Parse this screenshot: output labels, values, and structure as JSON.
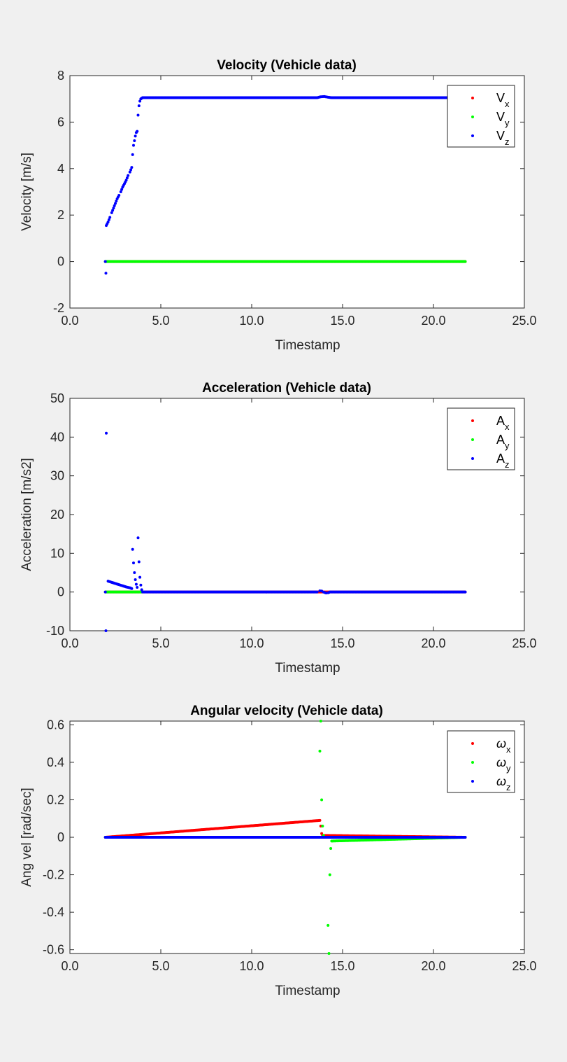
{
  "figure": {
    "background": "#f0f0f0",
    "axes_background": "#ffffff",
    "axis_color": "#262626",
    "legend_border": "#262626"
  },
  "chart_data": [
    {
      "type": "scatter",
      "title": "Velocity (Vehicle data)",
      "xlabel": "Timestamp",
      "ylabel": "Velocity [m/s]",
      "xlim": [
        0,
        25
      ],
      "ylim": [
        -2,
        8
      ],
      "xticks": [
        0,
        5,
        10,
        15,
        20,
        25
      ],
      "xtick_labels": [
        "0.0",
        "5.0",
        "10.0",
        "15.0",
        "20.0",
        "25.0"
      ],
      "yticks": [
        -2,
        0,
        2,
        4,
        6,
        8
      ],
      "ytick_labels": [
        "-2",
        "0",
        "2",
        "4",
        "6",
        "8"
      ],
      "grid": false,
      "legend_position": "top-right",
      "series": [
        {
          "name": "V",
          "sub": "x",
          "color": "#ff0000",
          "points": [
            [
              1.95,
              0
            ],
            [
              21.75,
              0
            ]
          ]
        },
        {
          "name": "V",
          "sub": "y",
          "color": "#00ff00",
          "points": [
            [
              1.95,
              0
            ],
            [
              21.75,
              0
            ]
          ]
        },
        {
          "name": "V",
          "sub": "z",
          "color": "#0000ff",
          "points": [
            [
              1.95,
              0
            ],
            [
              1.98,
              -0.5
            ],
            [
              2.0,
              1.55
            ],
            [
              2.1,
              1.7
            ],
            [
              2.2,
              1.9
            ],
            [
              2.3,
              2.1
            ],
            [
              2.4,
              2.3
            ],
            [
              2.5,
              2.5
            ],
            [
              2.6,
              2.7
            ],
            [
              2.7,
              2.85
            ],
            [
              2.8,
              3.0
            ],
            [
              2.9,
              3.2
            ],
            [
              3.0,
              3.35
            ],
            [
              3.1,
              3.5
            ],
            [
              3.2,
              3.7
            ],
            [
              3.3,
              3.85
            ],
            [
              3.4,
              4.05
            ],
            [
              3.45,
              4.6
            ],
            [
              3.5,
              5.0
            ],
            [
              3.55,
              5.2
            ],
            [
              3.6,
              5.4
            ],
            [
              3.65,
              5.55
            ],
            [
              3.7,
              5.6
            ],
            [
              3.75,
              6.3
            ],
            [
              3.8,
              6.7
            ],
            [
              3.85,
              6.9
            ],
            [
              3.9,
              7.0
            ],
            [
              4.0,
              7.05
            ],
            [
              13.6,
              7.05
            ],
            [
              13.8,
              7.09
            ],
            [
              14.0,
              7.1
            ],
            [
              14.2,
              7.07
            ],
            [
              14.4,
              7.05
            ],
            [
              21.75,
              7.05
            ]
          ]
        }
      ]
    },
    {
      "type": "scatter",
      "title": "Acceleration (Vehicle data)",
      "xlabel": "Timestamp",
      "ylabel": "Acceleration [m/s2]",
      "xlim": [
        0,
        25
      ],
      "ylim": [
        -10,
        50
      ],
      "xticks": [
        0,
        5,
        10,
        15,
        20,
        25
      ],
      "xtick_labels": [
        "0.0",
        "5.0",
        "10.0",
        "15.0",
        "20.0",
        "25.0"
      ],
      "yticks": [
        -10,
        0,
        10,
        20,
        30,
        40,
        50
      ],
      "ytick_labels": [
        "-10",
        "0",
        "10",
        "20",
        "30",
        "40",
        "50"
      ],
      "grid": false,
      "legend_position": "top-right",
      "series": [
        {
          "name": "A",
          "sub": "x",
          "color": "#ff0000",
          "points": [
            [
              1.95,
              0
            ],
            [
              21.75,
              0
            ]
          ]
        },
        {
          "name": "A",
          "sub": "y",
          "color": "#00ff00",
          "points": [
            [
              1.95,
              0
            ],
            [
              4.0,
              0
            ]
          ]
        },
        {
          "name": "A",
          "sub": "z",
          "color": "#0000ff",
          "points": [
            [
              1.95,
              0
            ],
            [
              1.98,
              -10
            ],
            [
              2.0,
              41
            ],
            [
              2.1,
              2.8
            ],
            [
              2.3,
              2.5
            ],
            [
              2.5,
              2.2
            ],
            [
              2.7,
              1.9
            ],
            [
              2.9,
              1.6
            ],
            [
              3.1,
              1.3
            ],
            [
              3.3,
              1.1
            ],
            [
              3.4,
              0.9
            ],
            [
              3.45,
              11
            ],
            [
              3.5,
              7.5
            ],
            [
              3.55,
              5
            ],
            [
              3.6,
              3.2
            ],
            [
              3.65,
              2.0
            ],
            [
              3.7,
              1.2
            ],
            [
              3.75,
              14
            ],
            [
              3.8,
              7.8
            ],
            [
              3.85,
              3.8
            ],
            [
              3.9,
              1.8
            ],
            [
              3.95,
              0.6
            ],
            [
              4.0,
              0
            ],
            [
              13.6,
              0
            ],
            [
              13.75,
              0.3
            ],
            [
              13.85,
              0.25
            ],
            [
              13.95,
              0
            ],
            [
              14.1,
              -0.25
            ],
            [
              14.2,
              -0.2
            ],
            [
              14.3,
              0
            ],
            [
              21.75,
              0
            ]
          ]
        }
      ]
    },
    {
      "type": "scatter",
      "title": "Angular velocity (Vehicle data)",
      "xlabel": "Timestamp",
      "ylabel": "Ang vel [rad/sec]",
      "xlim": [
        0,
        25
      ],
      "ylim": [
        -0.62,
        0.62
      ],
      "xticks": [
        0,
        5,
        10,
        15,
        20,
        25
      ],
      "xtick_labels": [
        "0.0",
        "5.0",
        "10.0",
        "15.0",
        "20.0",
        "25.0"
      ],
      "yticks": [
        -0.6,
        -0.4,
        -0.2,
        0,
        0.2,
        0.4,
        0.6
      ],
      "ytick_labels": [
        "-0.6",
        "-0.4",
        "-0.2",
        "0",
        "0.2",
        "0.4",
        "0.6"
      ],
      "grid": false,
      "legend_position": "top-right",
      "series": [
        {
          "name": "ω",
          "sub": "x",
          "color": "#ff0000",
          "points": [
            [
              1.95,
              0
            ],
            [
              13.75,
              0.09
            ],
            [
              13.8,
              0.06
            ],
            [
              13.85,
              0.02
            ],
            [
              13.9,
              0.01
            ],
            [
              21.75,
              0
            ]
          ]
        },
        {
          "name": "ω",
          "sub": "y",
          "color": "#00ff00",
          "points": [
            [
              1.95,
              0
            ],
            [
              13.75,
              0.46
            ],
            [
              13.8,
              0.62
            ],
            [
              13.85,
              0.2
            ],
            [
              13.9,
              0.06
            ],
            [
              13.95,
              0.01
            ],
            [
              14.0,
              0
            ],
            [
              14.2,
              -0.47
            ],
            [
              14.25,
              -0.62
            ],
            [
              14.3,
              -0.2
            ],
            [
              14.35,
              -0.06
            ],
            [
              14.4,
              -0.02
            ],
            [
              21.75,
              0
            ]
          ]
        },
        {
          "name": "ω",
          "sub": "z",
          "color": "#0000ff",
          "points": [
            [
              1.95,
              0
            ],
            [
              21.75,
              0
            ]
          ]
        }
      ]
    }
  ]
}
